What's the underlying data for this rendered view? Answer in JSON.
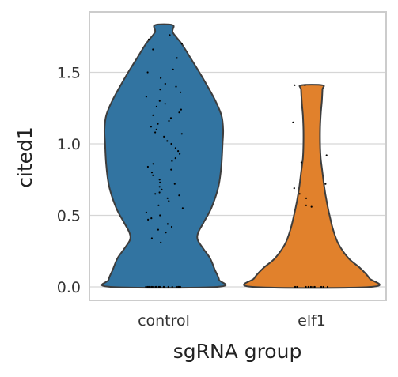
{
  "chart_data": {
    "type": "violin",
    "title": "",
    "xlabel": "sgRNA group",
    "ylabel": "cited1",
    "categories": [
      "control",
      "elf1"
    ],
    "ylim": [
      -0.1,
      1.93
    ],
    "yticks": [
      0.0,
      0.5,
      1.0,
      1.5
    ],
    "ytick_labels": [
      "0.0",
      "0.5",
      "1.0",
      "1.5"
    ],
    "grid": "horizontal",
    "legend": "none",
    "colors": {
      "control": "#3274a1",
      "elf1": "#e1812c",
      "outline": "#3d3d3d",
      "points": "#000000",
      "grid": "#d6d6d6",
      "frame": "#cccccc"
    },
    "violins": [
      {
        "category": "control",
        "color": "#3274a1",
        "ymax": 1.83,
        "density_profile": [
          [
            0.0,
            0.9
          ],
          [
            0.05,
            0.93
          ],
          [
            0.12,
            0.86
          ],
          [
            0.2,
            0.78
          ],
          [
            0.27,
            0.66
          ],
          [
            0.33,
            0.57
          ],
          [
            0.38,
            0.58
          ],
          [
            0.45,
            0.67
          ],
          [
            0.55,
            0.8
          ],
          [
            0.7,
            0.92
          ],
          [
            0.85,
            0.97
          ],
          [
            1.0,
            0.99
          ],
          [
            1.1,
            1.0
          ],
          [
            1.2,
            0.97
          ],
          [
            1.3,
            0.87
          ],
          [
            1.4,
            0.74
          ],
          [
            1.5,
            0.6
          ],
          [
            1.6,
            0.45
          ],
          [
            1.7,
            0.3
          ],
          [
            1.78,
            0.15
          ],
          [
            1.83,
            0.15
          ]
        ],
        "points": [
          0,
          0,
          0,
          0,
          0,
          0,
          0,
          0,
          0,
          0,
          0,
          0,
          0,
          0,
          0,
          0,
          0,
          0,
          0,
          0,
          0,
          0,
          0,
          0,
          0.31,
          0.34,
          0.38,
          0.4,
          0.42,
          0.44,
          0.47,
          0.48,
          0.5,
          0.52,
          0.55,
          0.57,
          0.6,
          0.62,
          0.64,
          0.65,
          0.66,
          0.68,
          0.7,
          0.72,
          0.73,
          0.75,
          0.78,
          0.8,
          0.82,
          0.84,
          0.86,
          0.88,
          0.9,
          0.93,
          0.95,
          0.97,
          1.0,
          1.02,
          1.05,
          1.07,
          1.08,
          1.1,
          1.12,
          1.14,
          1.16,
          1.18,
          1.2,
          1.22,
          1.24,
          1.26,
          1.28,
          1.3,
          1.33,
          1.36,
          1.38,
          1.4,
          1.42,
          1.46,
          1.5,
          1.52,
          1.6,
          1.66,
          1.7,
          1.73,
          1.76
        ]
      },
      {
        "category": "elf1",
        "color": "#e1812c",
        "ymax": 1.41,
        "density_profile": [
          [
            0.0,
            1.0
          ],
          [
            0.06,
            0.97
          ],
          [
            0.13,
            0.82
          ],
          [
            0.2,
            0.62
          ],
          [
            0.3,
            0.45
          ],
          [
            0.4,
            0.36
          ],
          [
            0.5,
            0.3
          ],
          [
            0.6,
            0.25
          ],
          [
            0.7,
            0.21
          ],
          [
            0.8,
            0.18
          ],
          [
            0.9,
            0.15
          ],
          [
            1.0,
            0.14
          ],
          [
            1.1,
            0.14
          ],
          [
            1.2,
            0.15
          ],
          [
            1.3,
            0.17
          ],
          [
            1.38,
            0.18
          ],
          [
            1.41,
            0.18
          ]
        ],
        "points": [
          0,
          0,
          0,
          0,
          0,
          0,
          0,
          0,
          0,
          0,
          0,
          0.56,
          0.57,
          0.62,
          0.65,
          0.69,
          0.72,
          0.87,
          0.92,
          1.15,
          1.41,
          1.41
        ]
      }
    ]
  }
}
